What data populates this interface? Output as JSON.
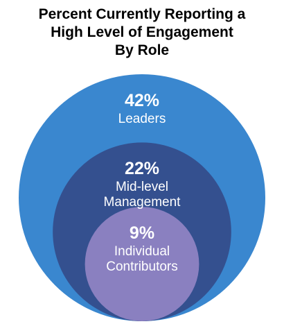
{
  "chart_data": {
    "type": "nested-circles",
    "title": "Percent Currently Reporting a\nHigh Level of Engagement\nBy Role",
    "categories": [
      "Leaders",
      "Mid-level\nManagement",
      "Individual\nContributors"
    ],
    "values": [
      42,
      22,
      9
    ],
    "value_labels": [
      "42%",
      "22%",
      "9%"
    ],
    "colors": [
      "#3a87cf",
      "#34508f",
      "#8a80c0"
    ]
  }
}
